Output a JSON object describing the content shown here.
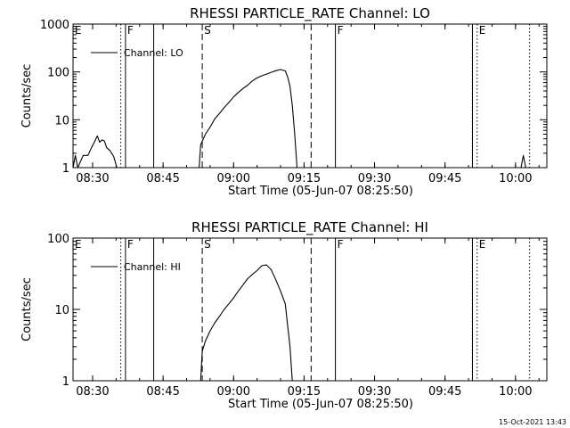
{
  "chart_data": [
    {
      "type": "line",
      "title": "RHESSI PARTICLE_RATE Channel: LO",
      "xlabel": "Start Time (05-Jun-07 08:25:50)",
      "ylabel": "Counts/sec",
      "xscale": "time",
      "yscale": "log",
      "xlim": [
        "08:25:50",
        "10:06:40"
      ],
      "ylim": [
        1,
        1000
      ],
      "xticks": [
        "08:30",
        "08:45",
        "09:00",
        "09:15",
        "09:30",
        "09:45",
        "10:00"
      ],
      "yticks": [
        "1",
        "10",
        "100",
        "1000"
      ],
      "legend": {
        "position": "top-left",
        "entries": [
          "Channel: LO"
        ]
      },
      "grid": false,
      "series": [
        {
          "name": "Channel: LO",
          "points": [
            [
              "08:25:50",
              1
            ],
            [
              "08:26:20",
              1.8
            ],
            [
              "08:26:50",
              1.0
            ],
            [
              "08:28:00",
              1.8
            ],
            [
              "08:29:00",
              1.8
            ],
            [
              "08:29:45",
              2.6
            ],
            [
              "08:30:30",
              3.6
            ],
            [
              "08:31:00",
              4.6
            ],
            [
              "08:31:30",
              3.4
            ],
            [
              "08:32:00",
              3.8
            ],
            [
              "08:32:30",
              3.6
            ],
            [
              "08:33:00",
              2.6
            ],
            [
              "08:33:40",
              2.3
            ],
            [
              "08:34:30",
              1.7
            ],
            [
              "08:35:10",
              1
            ],
            [
              "08:52:40",
              1
            ],
            [
              "08:53:00",
              3.0
            ],
            [
              "08:54:00",
              5.0
            ],
            [
              "08:55:00",
              7.0
            ],
            [
              "08:56:00",
              10.5
            ],
            [
              "08:57:00",
              13.5
            ],
            [
              "08:58:00",
              18
            ],
            [
              "08:59:00",
              23
            ],
            [
              "09:00:00",
              30
            ],
            [
              "09:01:00",
              37
            ],
            [
              "09:02:00",
              45
            ],
            [
              "09:03:00",
              53
            ],
            [
              "09:04:00",
              65
            ],
            [
              "09:05:00",
              75
            ],
            [
              "09:06:00",
              83
            ],
            [
              "09:07:00",
              90
            ],
            [
              "09:08:00",
              98
            ],
            [
              "09:09:00",
              106
            ],
            [
              "09:10:00",
              112
            ],
            [
              "09:11:00",
              105
            ],
            [
              "09:11:30",
              80
            ],
            [
              "09:12:00",
              50
            ],
            [
              "09:12:30",
              20
            ],
            [
              "09:13:00",
              5
            ],
            [
              "09:13:30",
              1
            ],
            [
              "10:01:10",
              1
            ],
            [
              "10:01:40",
              1.8
            ],
            [
              "10:02:10",
              1
            ]
          ]
        }
      ],
      "markers": [
        {
          "time": "08:25:50",
          "style": "dotted",
          "label": "E"
        },
        {
          "time": "08:36:00",
          "style": "dotted",
          "label": ""
        },
        {
          "time": "08:37:00",
          "style": "solid",
          "label": "F"
        },
        {
          "time": "08:43:00",
          "style": "solid",
          "label": ""
        },
        {
          "time": "08:53:20",
          "style": "dashed",
          "label": "S"
        },
        {
          "time": "09:16:30",
          "style": "dashed",
          "label": ""
        },
        {
          "time": "09:21:40",
          "style": "solid",
          "label": "F"
        },
        {
          "time": "09:50:50",
          "style": "solid",
          "label": ""
        },
        {
          "time": "09:51:50",
          "style": "dotted",
          "label": "E"
        },
        {
          "time": "10:03:00",
          "style": "dotted",
          "label": ""
        }
      ]
    },
    {
      "type": "line",
      "title": "RHESSI PARTICLE_RATE Channel: HI",
      "xlabel": "Start Time (05-Jun-07 08:25:50)",
      "ylabel": "Counts/sec",
      "xscale": "time",
      "yscale": "log",
      "xlim": [
        "08:25:50",
        "10:06:40"
      ],
      "ylim": [
        1,
        100
      ],
      "xticks": [
        "08:30",
        "08:45",
        "09:00",
        "09:15",
        "09:30",
        "09:45",
        "10:00"
      ],
      "yticks": [
        "1",
        "10",
        "100"
      ],
      "legend": {
        "position": "top-left",
        "entries": [
          "Channel: HI"
        ]
      },
      "grid": false,
      "series": [
        {
          "name": "Channel: HI",
          "points": [
            [
              "08:53:00",
              1
            ],
            [
              "08:53:20",
              2.6
            ],
            [
              "08:54:00",
              3.6
            ],
            [
              "08:55:00",
              5.0
            ],
            [
              "08:56:00",
              6.5
            ],
            [
              "08:57:00",
              8.0
            ],
            [
              "08:58:00",
              10
            ],
            [
              "08:59:00",
              12
            ],
            [
              "09:00:00",
              14.5
            ],
            [
              "09:01:00",
              18
            ],
            [
              "09:02:00",
              22
            ],
            [
              "09:03:00",
              27
            ],
            [
              "09:04:00",
              31
            ],
            [
              "09:05:00",
              35
            ],
            [
              "09:06:00",
              41
            ],
            [
              "09:07:00",
              42
            ],
            [
              "09:08:00",
              36
            ],
            [
              "09:09:00",
              26
            ],
            [
              "09:10:00",
              18
            ],
            [
              "09:11:00",
              12
            ],
            [
              "09:11:30",
              6
            ],
            [
              "09:12:00",
              3
            ],
            [
              "09:12:30",
              1
            ]
          ]
        }
      ],
      "markers": [
        {
          "time": "08:25:50",
          "style": "dotted",
          "label": "E"
        },
        {
          "time": "08:36:00",
          "style": "dotted",
          "label": ""
        },
        {
          "time": "08:37:00",
          "style": "solid",
          "label": "F"
        },
        {
          "time": "08:43:00",
          "style": "solid",
          "label": ""
        },
        {
          "time": "08:53:20",
          "style": "dashed",
          "label": "S"
        },
        {
          "time": "09:16:30",
          "style": "dashed",
          "label": ""
        },
        {
          "time": "09:21:40",
          "style": "solid",
          "label": "F"
        },
        {
          "time": "09:50:50",
          "style": "solid",
          "label": ""
        },
        {
          "time": "09:51:50",
          "style": "dotted",
          "label": "E"
        },
        {
          "time": "10:03:00",
          "style": "dotted",
          "label": ""
        }
      ]
    }
  ],
  "footer": {
    "timestamp": "15-Oct-2021 13:43"
  }
}
